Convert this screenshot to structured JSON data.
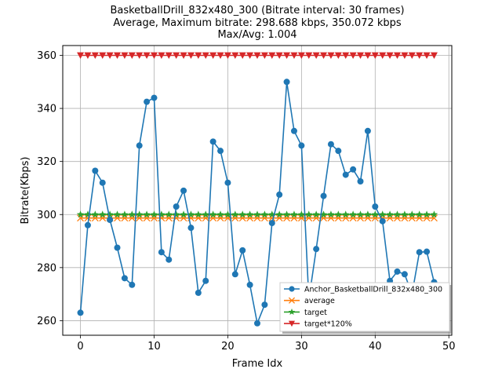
{
  "chart_data": {
    "type": "line",
    "title_lines": [
      "BasketballDrill_832x480_300 (Bitrate interval: 30 frames)",
      "Average, Maximum bitrate: 298.688 kbps, 350.072 kbps",
      "Max/Avg: 1.004"
    ],
    "xlabel": "Frame Idx",
    "ylabel": "Bitrate(Kbps)",
    "xlim": [
      -2.4,
      50.4
    ],
    "ylim": [
      254.5,
      363.7
    ],
    "xticks": [
      0,
      10,
      20,
      30,
      40,
      50
    ],
    "yticks": [
      260,
      280,
      300,
      320,
      340,
      360
    ],
    "grid": true,
    "legend_position": "lower-right",
    "x": [
      0,
      1,
      2,
      3,
      4,
      5,
      6,
      7,
      8,
      9,
      10,
      11,
      12,
      13,
      14,
      15,
      16,
      17,
      18,
      19,
      20,
      21,
      22,
      23,
      24,
      25,
      26,
      27,
      28,
      29,
      30,
      31,
      32,
      33,
      34,
      35,
      36,
      37,
      38,
      39,
      40,
      41,
      42,
      43,
      44,
      45,
      46,
      47,
      48
    ],
    "series": [
      {
        "name": "Anchor_BasketballDrill_832x480_300",
        "color": "#1f77b4",
        "marker": "circle",
        "values": [
          263,
          296,
          316.5,
          312,
          298,
          287.5,
          276,
          273.5,
          326,
          342.5,
          344,
          285.8,
          283,
          303,
          309,
          295,
          270.5,
          275,
          327.5,
          324,
          312,
          277.5,
          286.5,
          273.5,
          259,
          266,
          296.8,
          307.5,
          350,
          331.5,
          326,
          268,
          287,
          307,
          326.5,
          324,
          315,
          317,
          312.5,
          331.5,
          303,
          297.5,
          275,
          278.5,
          277.5,
          270,
          285.8,
          286,
          274.5
        ]
      },
      {
        "name": "average",
        "color": "#ff7f0e",
        "marker": "x",
        "values": [
          298.688,
          298.688,
          298.688,
          298.688,
          298.688,
          298.688,
          298.688,
          298.688,
          298.688,
          298.688,
          298.688,
          298.688,
          298.688,
          298.688,
          298.688,
          298.688,
          298.688,
          298.688,
          298.688,
          298.688,
          298.688,
          298.688,
          298.688,
          298.688,
          298.688,
          298.688,
          298.688,
          298.688,
          298.688,
          298.688,
          298.688,
          298.688,
          298.688,
          298.688,
          298.688,
          298.688,
          298.688,
          298.688,
          298.688,
          298.688,
          298.688,
          298.688,
          298.688,
          298.688,
          298.688,
          298.688,
          298.688,
          298.688,
          298.688
        ]
      },
      {
        "name": "target",
        "color": "#2ca02c",
        "marker": "star",
        "values": [
          300,
          300,
          300,
          300,
          300,
          300,
          300,
          300,
          300,
          300,
          300,
          300,
          300,
          300,
          300,
          300,
          300,
          300,
          300,
          300,
          300,
          300,
          300,
          300,
          300,
          300,
          300,
          300,
          300,
          300,
          300,
          300,
          300,
          300,
          300,
          300,
          300,
          300,
          300,
          300,
          300,
          300,
          300,
          300,
          300,
          300,
          300,
          300,
          300
        ]
      },
      {
        "name": "target*120%",
        "color": "#d62728",
        "marker": "triangle-down",
        "values": [
          360,
          360,
          360,
          360,
          360,
          360,
          360,
          360,
          360,
          360,
          360,
          360,
          360,
          360,
          360,
          360,
          360,
          360,
          360,
          360,
          360,
          360,
          360,
          360,
          360,
          360,
          360,
          360,
          360,
          360,
          360,
          360,
          360,
          360,
          360,
          360,
          360,
          360,
          360,
          360,
          360,
          360,
          360,
          360,
          360,
          360,
          360,
          360,
          360
        ]
      }
    ]
  }
}
